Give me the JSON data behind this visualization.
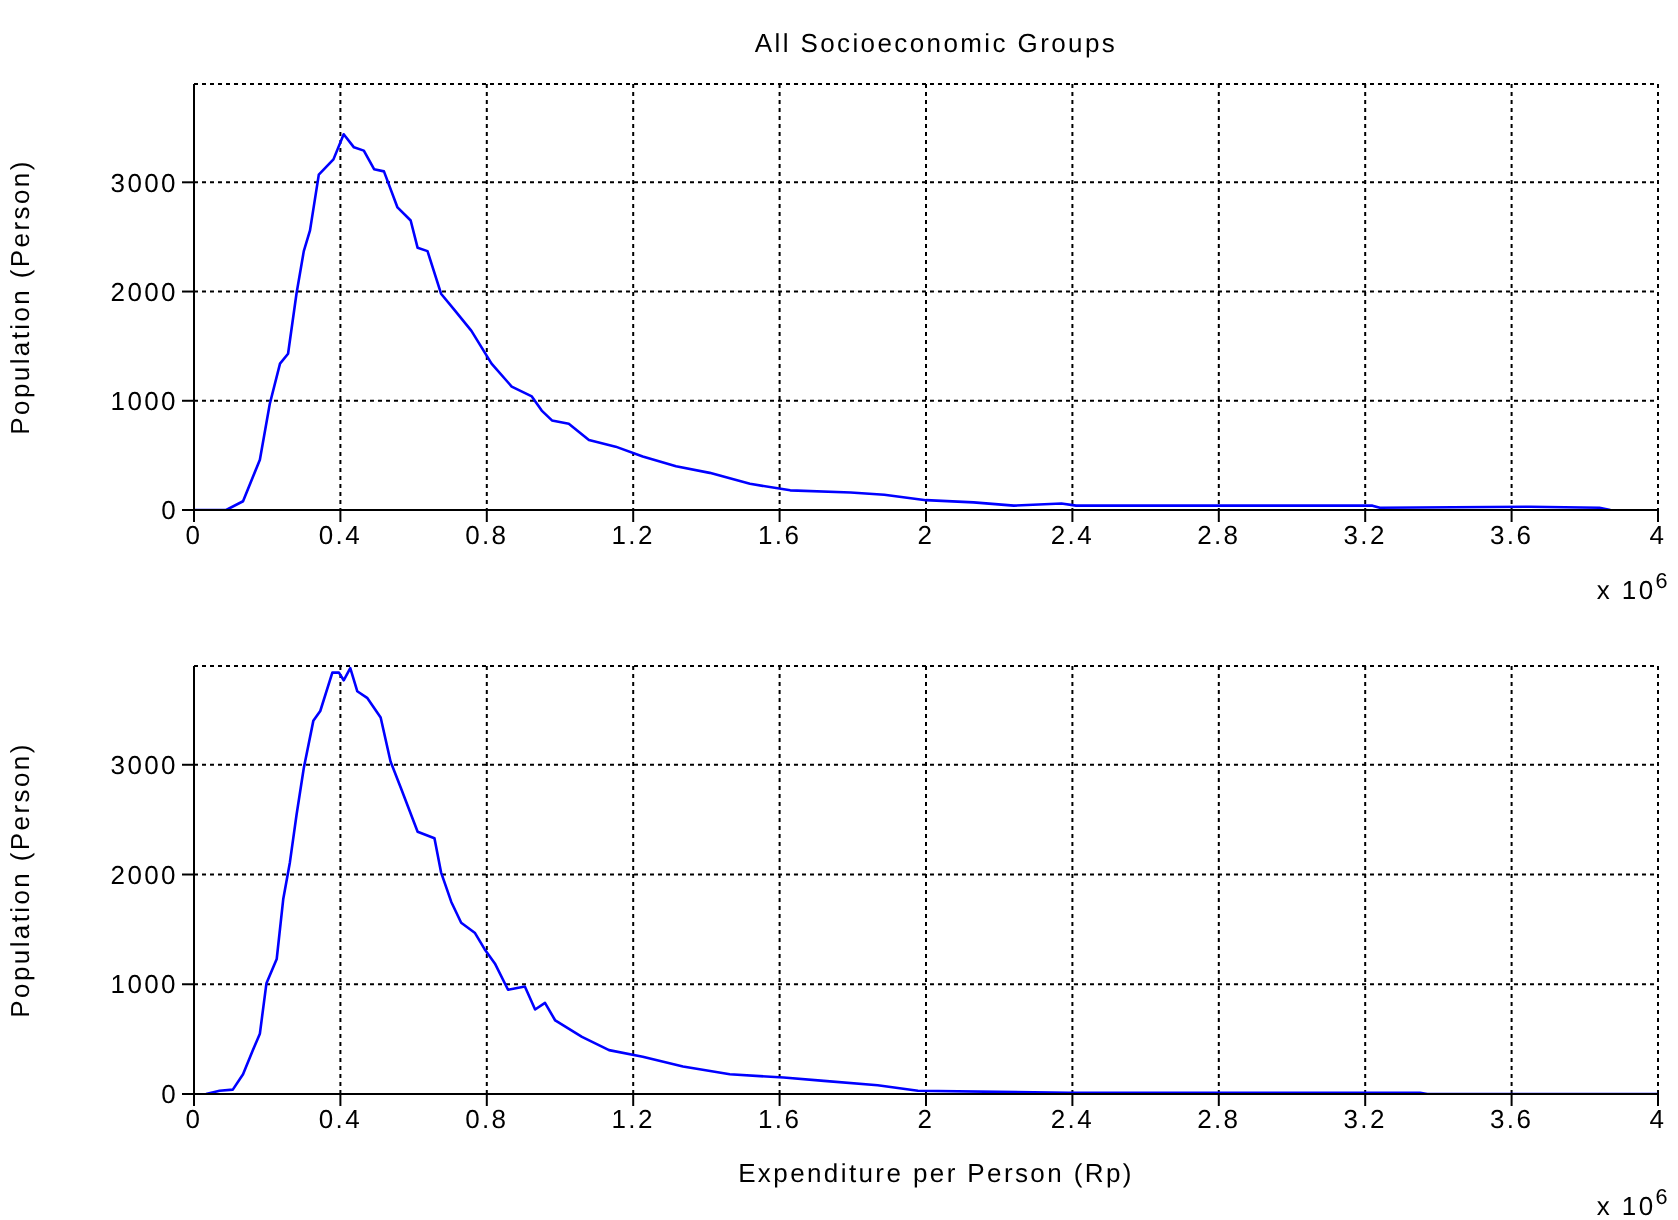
{
  "chart_data": [
    {
      "type": "line",
      "title": "All Socioeconomic Groups",
      "ylabel": "Population (Person)",
      "color": "#0000ff",
      "grid": true,
      "xlim": [
        0,
        4
      ],
      "ylim": [
        0,
        3900
      ],
      "xticks": [
        0,
        0.4,
        0.8,
        1.2,
        1.6,
        2,
        2.4,
        2.8,
        3.2,
        3.6,
        4
      ],
      "yticks": [
        0,
        1000,
        2000,
        3000
      ],
      "annotations": [
        "x 10$^{6}$"
      ],
      "x": [
        0,
        0.088,
        0.134,
        0.18,
        0.207,
        0.235,
        0.257,
        0.28,
        0.3,
        0.317,
        0.341,
        0.381,
        0.409,
        0.437,
        0.464,
        0.492,
        0.519,
        0.556,
        0.592,
        0.611,
        0.638,
        0.675,
        0.712,
        0.758,
        0.813,
        0.868,
        0.923,
        0.95,
        0.978,
        1.024,
        1.079,
        1.152,
        1.226,
        1.317,
        1.409,
        1.519,
        1.629,
        1.794,
        1.886,
        2,
        2.13,
        2.24,
        2.37,
        2.41,
        3.22,
        3.24,
        3.65,
        3.84,
        3.87
      ],
      "values": [
        0,
        0,
        80,
        460,
        970,
        1340,
        1430,
        1980,
        2370,
        2560,
        3070,
        3210,
        3440,
        3320,
        3290,
        3120,
        3100,
        2770,
        2650,
        2400,
        2370,
        1980,
        1830,
        1640,
        1340,
        1130,
        1040,
        910,
        820,
        790,
        640,
        580,
        490,
        400,
        340,
        240,
        180,
        160,
        140,
        90,
        70,
        40,
        60,
        40,
        40,
        20,
        30,
        20,
        0
      ]
    },
    {
      "type": "line",
      "xlabel": "Expenditure per Person (Rp)",
      "ylabel": "Population (Person)",
      "color": "#0000ff",
      "grid": true,
      "xlim": [
        0,
        4
      ],
      "ylim": [
        0,
        3900
      ],
      "xticks": [
        0,
        0.4,
        0.8,
        1.2,
        1.6,
        2,
        2.4,
        2.8,
        3.2,
        3.6,
        4
      ],
      "yticks": [
        0,
        1000,
        2000,
        3000
      ],
      "annotations": [
        "x 10$^{6}$"
      ],
      "x": [
        0.033,
        0.07,
        0.106,
        0.134,
        0.161,
        0.18,
        0.198,
        0.226,
        0.244,
        0.262,
        0.28,
        0.3,
        0.326,
        0.345,
        0.378,
        0.396,
        0.409,
        0.427,
        0.446,
        0.473,
        0.51,
        0.537,
        0.565,
        0.611,
        0.657,
        0.675,
        0.703,
        0.73,
        0.767,
        0.794,
        0.822,
        0.858,
        0.904,
        0.932,
        0.959,
        0.987,
        1.06,
        1.134,
        1.226,
        1.336,
        1.464,
        1.611,
        1.721,
        1.868,
        1.978,
        2.39,
        2.8,
        3.35,
        3.37,
        4
      ],
      "values": [
        0,
        30,
        40,
        180,
        400,
        550,
        1010,
        1230,
        1780,
        2110,
        2540,
        2970,
        3400,
        3490,
        3840,
        3840,
        3770,
        3880,
        3670,
        3610,
        3430,
        3030,
        2790,
        2390,
        2330,
        2020,
        1750,
        1560,
        1470,
        1320,
        1190,
        950,
        980,
        770,
        830,
        670,
        520,
        400,
        340,
        250,
        180,
        150,
        120,
        80,
        30,
        10,
        10,
        10,
        0,
        0
      ]
    }
  ]
}
